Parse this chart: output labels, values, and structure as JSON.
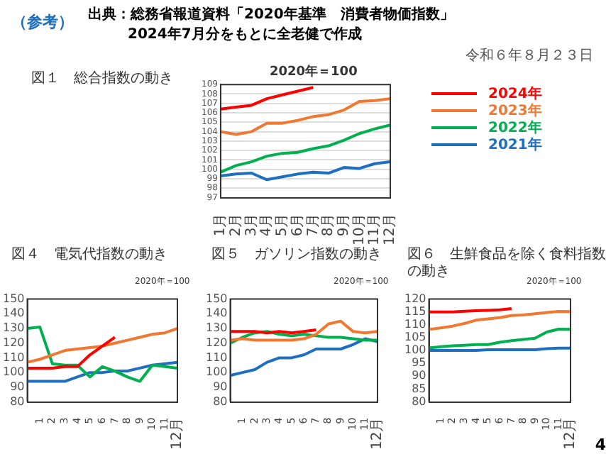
{
  "chart_data": [
    {
      "type": "other",
      "title": "出典：総務省報道資料「2020年基準　消費者物価指数」",
      "subtitle": "2024年7月分をもとに全老健で作成",
      "annotations": [
        "（参考）",
        "令和６年８月２３日"
      ]
    },
    {
      "type": "line",
      "title": "図１　総合指数の動き",
      "annotations": [
        "2020年＝100"
      ],
      "categories": [
        "1月",
        "2月",
        "3月",
        "4月",
        "5月",
        "6月",
        "7月",
        "8月",
        "9月",
        "10月",
        "11月",
        "12月"
      ],
      "ylim": [
        97,
        109
      ],
      "yticks": [
        97,
        98,
        99,
        100,
        101,
        102,
        103,
        104,
        105,
        106,
        107,
        108,
        109
      ],
      "grid": "y",
      "legend": "right",
      "series": [
        {
          "name": "2024年",
          "color": "#ff0000",
          "values": [
            106.4,
            106.6,
            106.8,
            107.5,
            107.9,
            108.3,
            108.7,
            null,
            null,
            null,
            null,
            null
          ]
        },
        {
          "name": "2023年",
          "color": "#f07830",
          "values": [
            104.0,
            103.7,
            104.0,
            104.9,
            104.9,
            105.2,
            105.6,
            105.8,
            106.3,
            107.2,
            107.3,
            107.5
          ]
        },
        {
          "name": "2022年",
          "color": "#00b050",
          "values": [
            99.7,
            100.4,
            100.8,
            101.4,
            101.7,
            101.8,
            102.2,
            102.5,
            103.1,
            103.8,
            104.3,
            104.7
          ]
        },
        {
          "name": "2021年",
          "color": "#1f6fc0",
          "values": [
            99.3,
            99.5,
            99.6,
            98.9,
            99.2,
            99.5,
            99.7,
            99.6,
            100.2,
            100.1,
            100.6,
            100.8
          ]
        }
      ]
    },
    {
      "type": "line",
      "title": "図４　電気代指数の動き",
      "annotations": [
        "2020年＝100"
      ],
      "categories": [
        null,
        "1",
        "2",
        "3",
        "4",
        "5",
        "6",
        "7",
        "8",
        "9",
        "10",
        "11",
        "12月"
      ],
      "ylim": [
        80,
        150
      ],
      "yticks": [
        80,
        90,
        100,
        110,
        120,
        130,
        140,
        150
      ],
      "series": [
        {
          "color": "#ff0000",
          "values": [
            103,
            103,
            103,
            104,
            104,
            112,
            118,
            124,
            null,
            null,
            null,
            null,
            null
          ]
        },
        {
          "color": "#f07830",
          "values": [
            107,
            109,
            112,
            115,
            116,
            117,
            118,
            120,
            122,
            124,
            126,
            127,
            130
          ]
        },
        {
          "color": "#00b050",
          "values": [
            130,
            131,
            106,
            105,
            105,
            97,
            104,
            101,
            97,
            94,
            105,
            104,
            103
          ]
        },
        {
          "color": "#1f6fc0",
          "values": [
            94,
            94,
            94,
            94,
            97,
            100,
            100,
            101,
            101,
            103,
            105,
            106,
            107
          ]
        }
      ]
    },
    {
      "type": "line",
      "title": "図５　ガソリン指数の動き",
      "annotations": [
        "2020年＝100"
      ],
      "categories": [
        null,
        "1",
        "2",
        "3",
        "4",
        "5",
        "6",
        "7",
        "8",
        "9",
        "10",
        "11",
        "12月"
      ],
      "ylim": [
        80,
        150
      ],
      "yticks": [
        80,
        90,
        100,
        110,
        120,
        130,
        140,
        150
      ],
      "series": [
        {
          "color": "#ff0000",
          "values": [
            128,
            128,
            128,
            127,
            128,
            127,
            128,
            129,
            null,
            null,
            null,
            null,
            null
          ]
        },
        {
          "color": "#f07830",
          "values": [
            122,
            123,
            122,
            122,
            122,
            122,
            123,
            126,
            133,
            135,
            128,
            127,
            128
          ]
        },
        {
          "color": "#00b050",
          "values": [
            120,
            124,
            127,
            128,
            126,
            125,
            126,
            125,
            124,
            124,
            123,
            122,
            122
          ]
        },
        {
          "color": "#1f6fc0",
          "values": [
            98,
            100,
            102,
            107,
            110,
            110,
            112,
            116,
            116,
            116,
            119,
            123,
            121
          ]
        }
      ]
    },
    {
      "type": "line",
      "title": "図６　生鮮食品を除く食料指数の動き",
      "annotations": [
        "2020年＝100",
        "4"
      ],
      "categories": [
        null,
        "1",
        "2",
        "3",
        "4",
        "5",
        "6",
        "7",
        "8",
        "9",
        "10",
        "11",
        "12月"
      ],
      "ylim": [
        80,
        120
      ],
      "yticks": [
        80,
        85,
        90,
        95,
        100,
        105,
        110,
        115,
        120
      ],
      "series": [
        {
          "color": "#ff0000",
          "values": [
            115,
            115,
            115,
            115.3,
            115.5,
            115.6,
            115.8,
            116.3,
            null,
            null,
            null,
            null,
            null
          ]
        },
        {
          "color": "#f07830",
          "values": [
            108.2,
            108.8,
            109.5,
            110.5,
            111.8,
            112.3,
            112.8,
            113.6,
            113.8,
            114.3,
            114.8,
            115.2,
            115.1
          ]
        },
        {
          "color": "#00b050",
          "values": [
            101,
            101.5,
            101.8,
            102,
            102.3,
            102.3,
            103.2,
            103.8,
            104.3,
            104.8,
            107.2,
            108.3,
            108.2
          ]
        },
        {
          "color": "#1f6fc0",
          "values": [
            100,
            100,
            100,
            100,
            100,
            100.3,
            100.3,
            100.3,
            100.3,
            100.3,
            100.7,
            100.9,
            100.9
          ]
        }
      ]
    }
  ]
}
